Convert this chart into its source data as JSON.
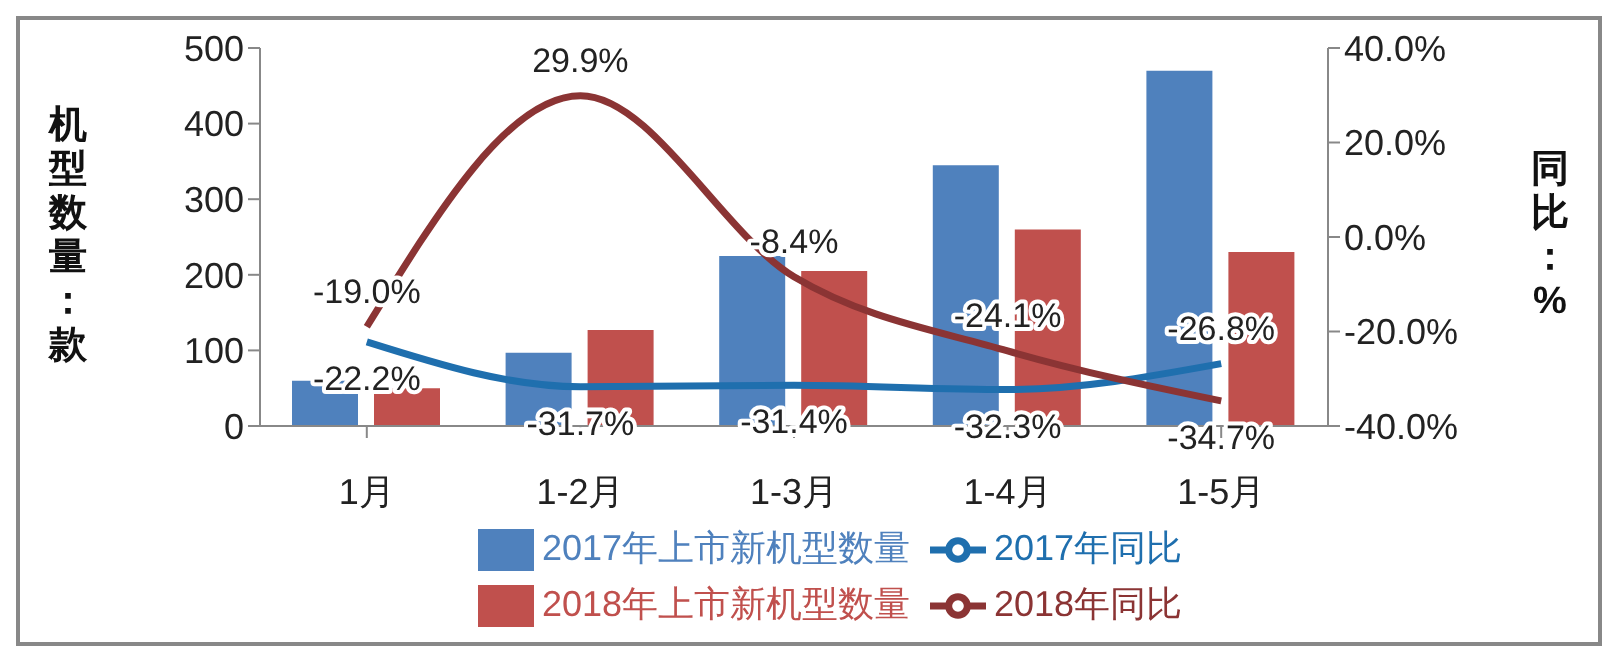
{
  "chart_data": {
    "type": "bar",
    "ylabel": "机型数量：款",
    "y2label": "同比：%",
    "categories": [
      "1月",
      "1-2月",
      "1-3月",
      "1-4月",
      "1-5月"
    ],
    "series": [
      {
        "name": "2017年上市新机型数量",
        "color": "#4f81bd",
        "values": [
          60,
          97,
          225,
          345,
          470
        ]
      },
      {
        "name": "2018年上市新机型数量",
        "color": "#c0504d",
        "values": [
          50,
          127,
          205,
          260,
          230
        ]
      },
      {
        "name": "2017年同比",
        "type": "line",
        "axis": "y2",
        "color": "#1f6fae",
        "values": [
          -22.2,
          -31.7,
          -31.4,
          -32.3,
          -26.8
        ],
        "value_labels": [
          "-22.2%",
          "-31.7%",
          "-31.4%",
          "-32.3%",
          "-26.8%"
        ]
      },
      {
        "name": "2018年同比",
        "type": "line",
        "axis": "y2",
        "color": "#8b3434",
        "values": [
          -19.0,
          29.9,
          -8.4,
          -24.1,
          -34.7
        ],
        "value_labels": [
          "-19.0%",
          "29.9%",
          "-8.4%",
          "-24.1%",
          "-34.7%"
        ]
      }
    ],
    "ylim": [
      0,
      500
    ],
    "yticks": [
      0,
      100,
      200,
      300,
      400,
      500
    ],
    "y2lim": [
      -40,
      40
    ],
    "y2ticks": [
      {
        "value": -40,
        "label": "-40.0%"
      },
      {
        "value": -20,
        "label": "-20.0%"
      },
      {
        "value": 0,
        "label": "0.0%"
      },
      {
        "value": 20,
        "label": "20.0%"
      },
      {
        "value": 40,
        "label": "40.0%"
      }
    ],
    "grid": false,
    "legend": "bottom",
    "marker": "none",
    "line_style": "solid"
  }
}
